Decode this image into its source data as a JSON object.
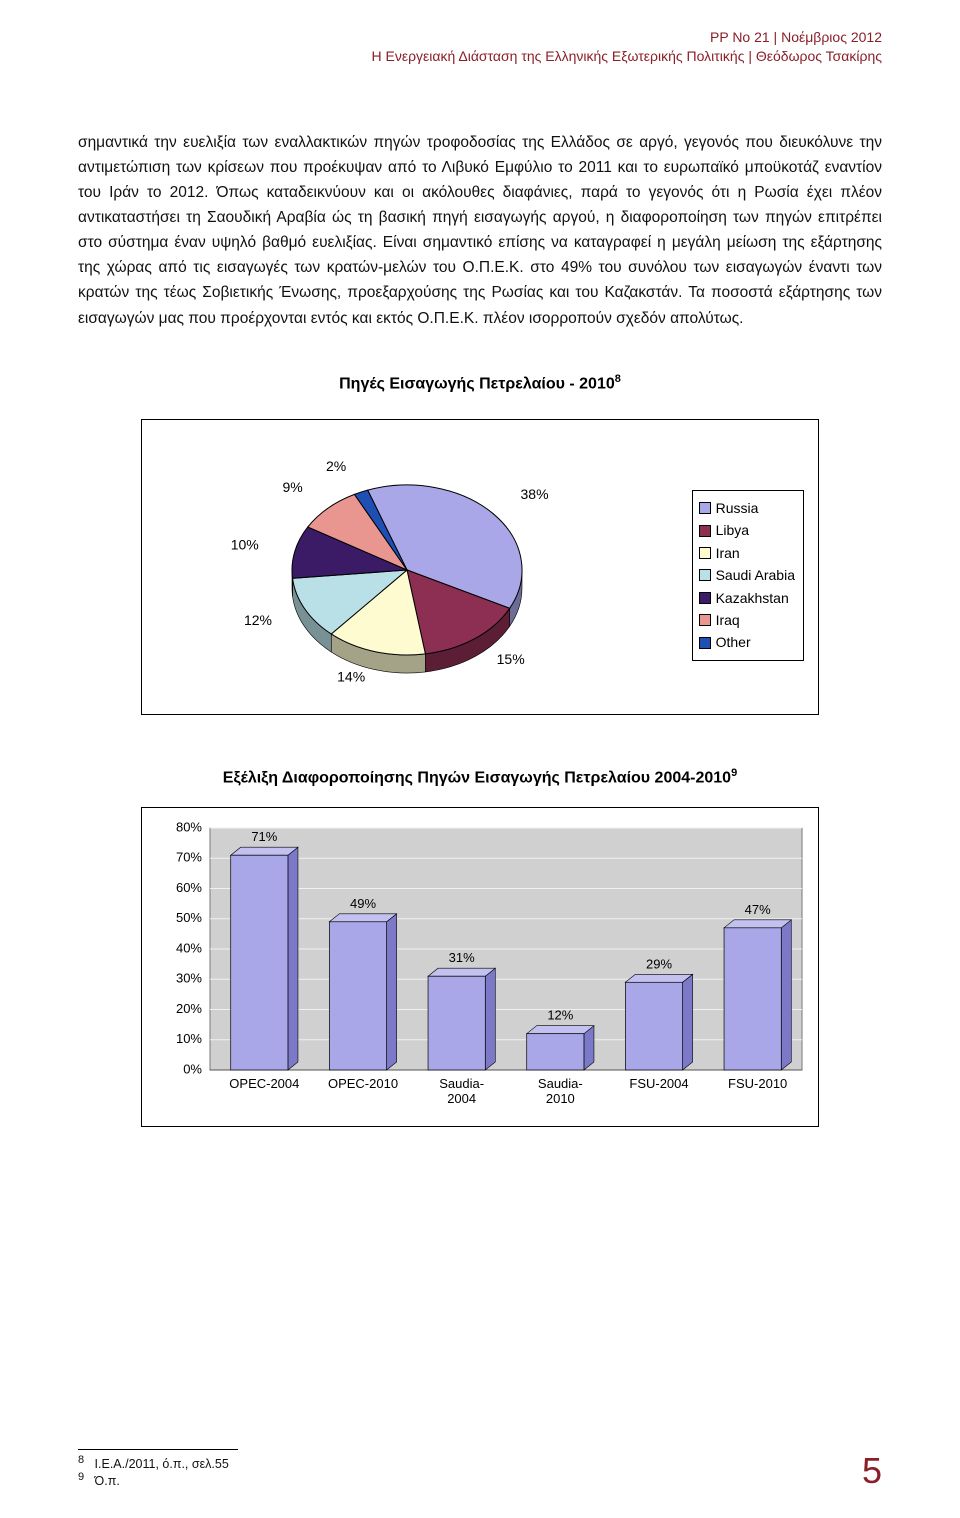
{
  "header": {
    "line1": "PP No 21 | Νοέμβριος 2012",
    "line2": "Η Ενεργειακή Διάσταση της Ελληνικής Εξωτερικής Πολιτικής | Θεόδωρος Τσακίρης",
    "color": "#8a1f28"
  },
  "paragraph": "σημαντικά την ευελιξία των εναλλακτικών πηγών τροφοδοσίας της Ελλάδος σε αργό, γεγονός που διευκόλυνε την αντιμετώπιση των κρίσεων που προέκυψαν από το Λιβυκό Εμφύλιο το 2011 και το ευρωπαϊκό μποϋκοτάζ εναντίον του Ιράν το 2012. Όπως καταδεικνύουν και οι ακόλουθες διαφάνιες, παρά το γεγονός ότι η Ρωσία έχει πλέον αντικαταστήσει τη Σαουδική Αραβία ώς τη βασική πηγή εισαγωγής αργού, η διαφοροποίηση των πηγών επιτρέπει στο σύστημα έναν υψηλό βαθμό ευελιξίας. Είναι σημαντικό επίσης να καταγραφεί η μεγάλη μείωση της εξάρτησης της χώρας από τις εισαγωγές των κρατών-μελών του Ο.Π.Ε.Κ. στο 49% του συνόλου των εισαγωγών έναντι των κρατών της τέως Σοβιετικής Ένωσης, προεξαρχούσης της Ρωσίας και του Καζακστάν. Τα ποσοστά εξάρτησης των εισαγωγών μας που προέρχονται εντός και εκτός Ο.Π.Ε.Κ. πλέον ισορροπούν σχεδόν απολύτως.",
  "pie_chart": {
    "title": "Πηγές Εισαγωγής Πετρελαίου - 2010",
    "title_footnote": "8",
    "type": "pie",
    "background": "#ffffff",
    "border_color": "#000000",
    "legend_border": "#000000",
    "series": [
      {
        "label": "Russia",
        "value": 38,
        "label_text": "38%",
        "color": "#a9a7e7"
      },
      {
        "label": "Libya",
        "value": 15,
        "label_text": "15%",
        "color": "#8c2f52"
      },
      {
        "label": "Iran",
        "value": 14,
        "label_text": "14%",
        "color": "#fffbd1"
      },
      {
        "label": "Saudi Arabia",
        "value": 12,
        "label_text": "12%",
        "color": "#b9e0e6"
      },
      {
        "label": "Kazakhstan",
        "value": 10,
        "label_text": "10%",
        "color": "#3b1a66"
      },
      {
        "label": "Iraq",
        "value": 9,
        "label_text": "9%",
        "color": "#e99690"
      },
      {
        "label": "Other",
        "value": 2,
        "label_text": "2%",
        "color": "#1f4fb3"
      }
    ],
    "label_fontsize": 14,
    "label_color": "#000000",
    "pie_border_color": "#000000",
    "pie_border_width": 1
  },
  "bar_chart": {
    "title": "Εξέλιξη Διαφοροποίησης Πηγών Εισαγωγής Πετρελαίου 2004-2010",
    "title_footnote": "9",
    "type": "bar",
    "categories": [
      "OPEC-2004",
      "OPEC-2010",
      "Saudia-2004",
      "Saudia-2010",
      "FSU-2004",
      "FSU-2010"
    ],
    "values": [
      71,
      49,
      31,
      12,
      29,
      47
    ],
    "value_labels": [
      "71%",
      "49%",
      "31%",
      "12%",
      "29%",
      "47%"
    ],
    "bar_color_fill": "#a9a7e7",
    "bar_color_side": "#7b79c8",
    "bar_color_top": "#c3c1f0",
    "bar_border": "#000000",
    "plot_background": "#d0d0d0",
    "background": "#ffffff",
    "ylim": [
      0,
      80
    ],
    "ytick_step": 10,
    "yticks": [
      "0%",
      "10%",
      "20%",
      "30%",
      "40%",
      "50%",
      "60%",
      "70%",
      "80%"
    ],
    "gridline_color": "#f0f0f0",
    "axis_fontsize": 13,
    "label_fontsize": 13,
    "value_label_fontsize": 13
  },
  "footnotes": {
    "items": [
      {
        "num": "8",
        "text": "Ι.Ε.Α./2011, ό.π., σελ.55"
      },
      {
        "num": "9",
        "text": "Ό.π."
      }
    ]
  },
  "page_number": "5"
}
